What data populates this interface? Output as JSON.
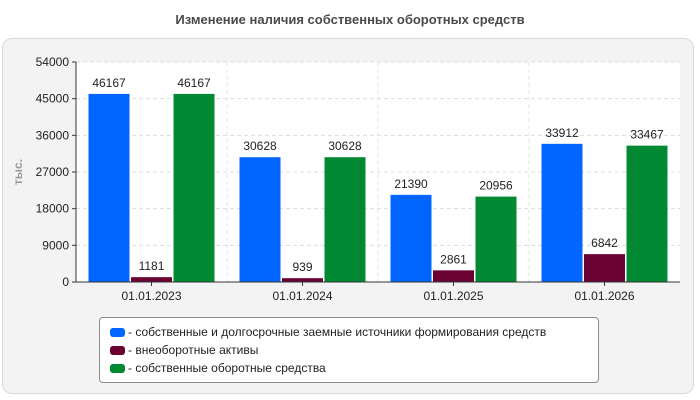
{
  "chart_data": {
    "type": "bar",
    "title": "Изменение наличия собственных оборотных средств",
    "ylabel": "тыс.",
    "xlabel": "",
    "categories": [
      "01.01.2023",
      "01.01.2024",
      "01.01.2025",
      "01.01.2026"
    ],
    "ylim": [
      0,
      54000
    ],
    "yticks": [
      0,
      9000,
      18000,
      27000,
      36000,
      45000,
      54000
    ],
    "grid": true,
    "legend_position": "bottom",
    "series": [
      {
        "name": "- собственные и долгосрочные заемные источники формирования средств",
        "color": "#0066ff",
        "values": [
          46167,
          30628,
          21390,
          33912
        ]
      },
      {
        "name": "- внеоборотные активы",
        "color": "#6b0033",
        "values": [
          1181,
          939,
          2861,
          6842
        ]
      },
      {
        "name": "- собственные оборотные средства",
        "color": "#008833",
        "values": [
          46167,
          30628,
          20956,
          33467
        ]
      }
    ]
  }
}
